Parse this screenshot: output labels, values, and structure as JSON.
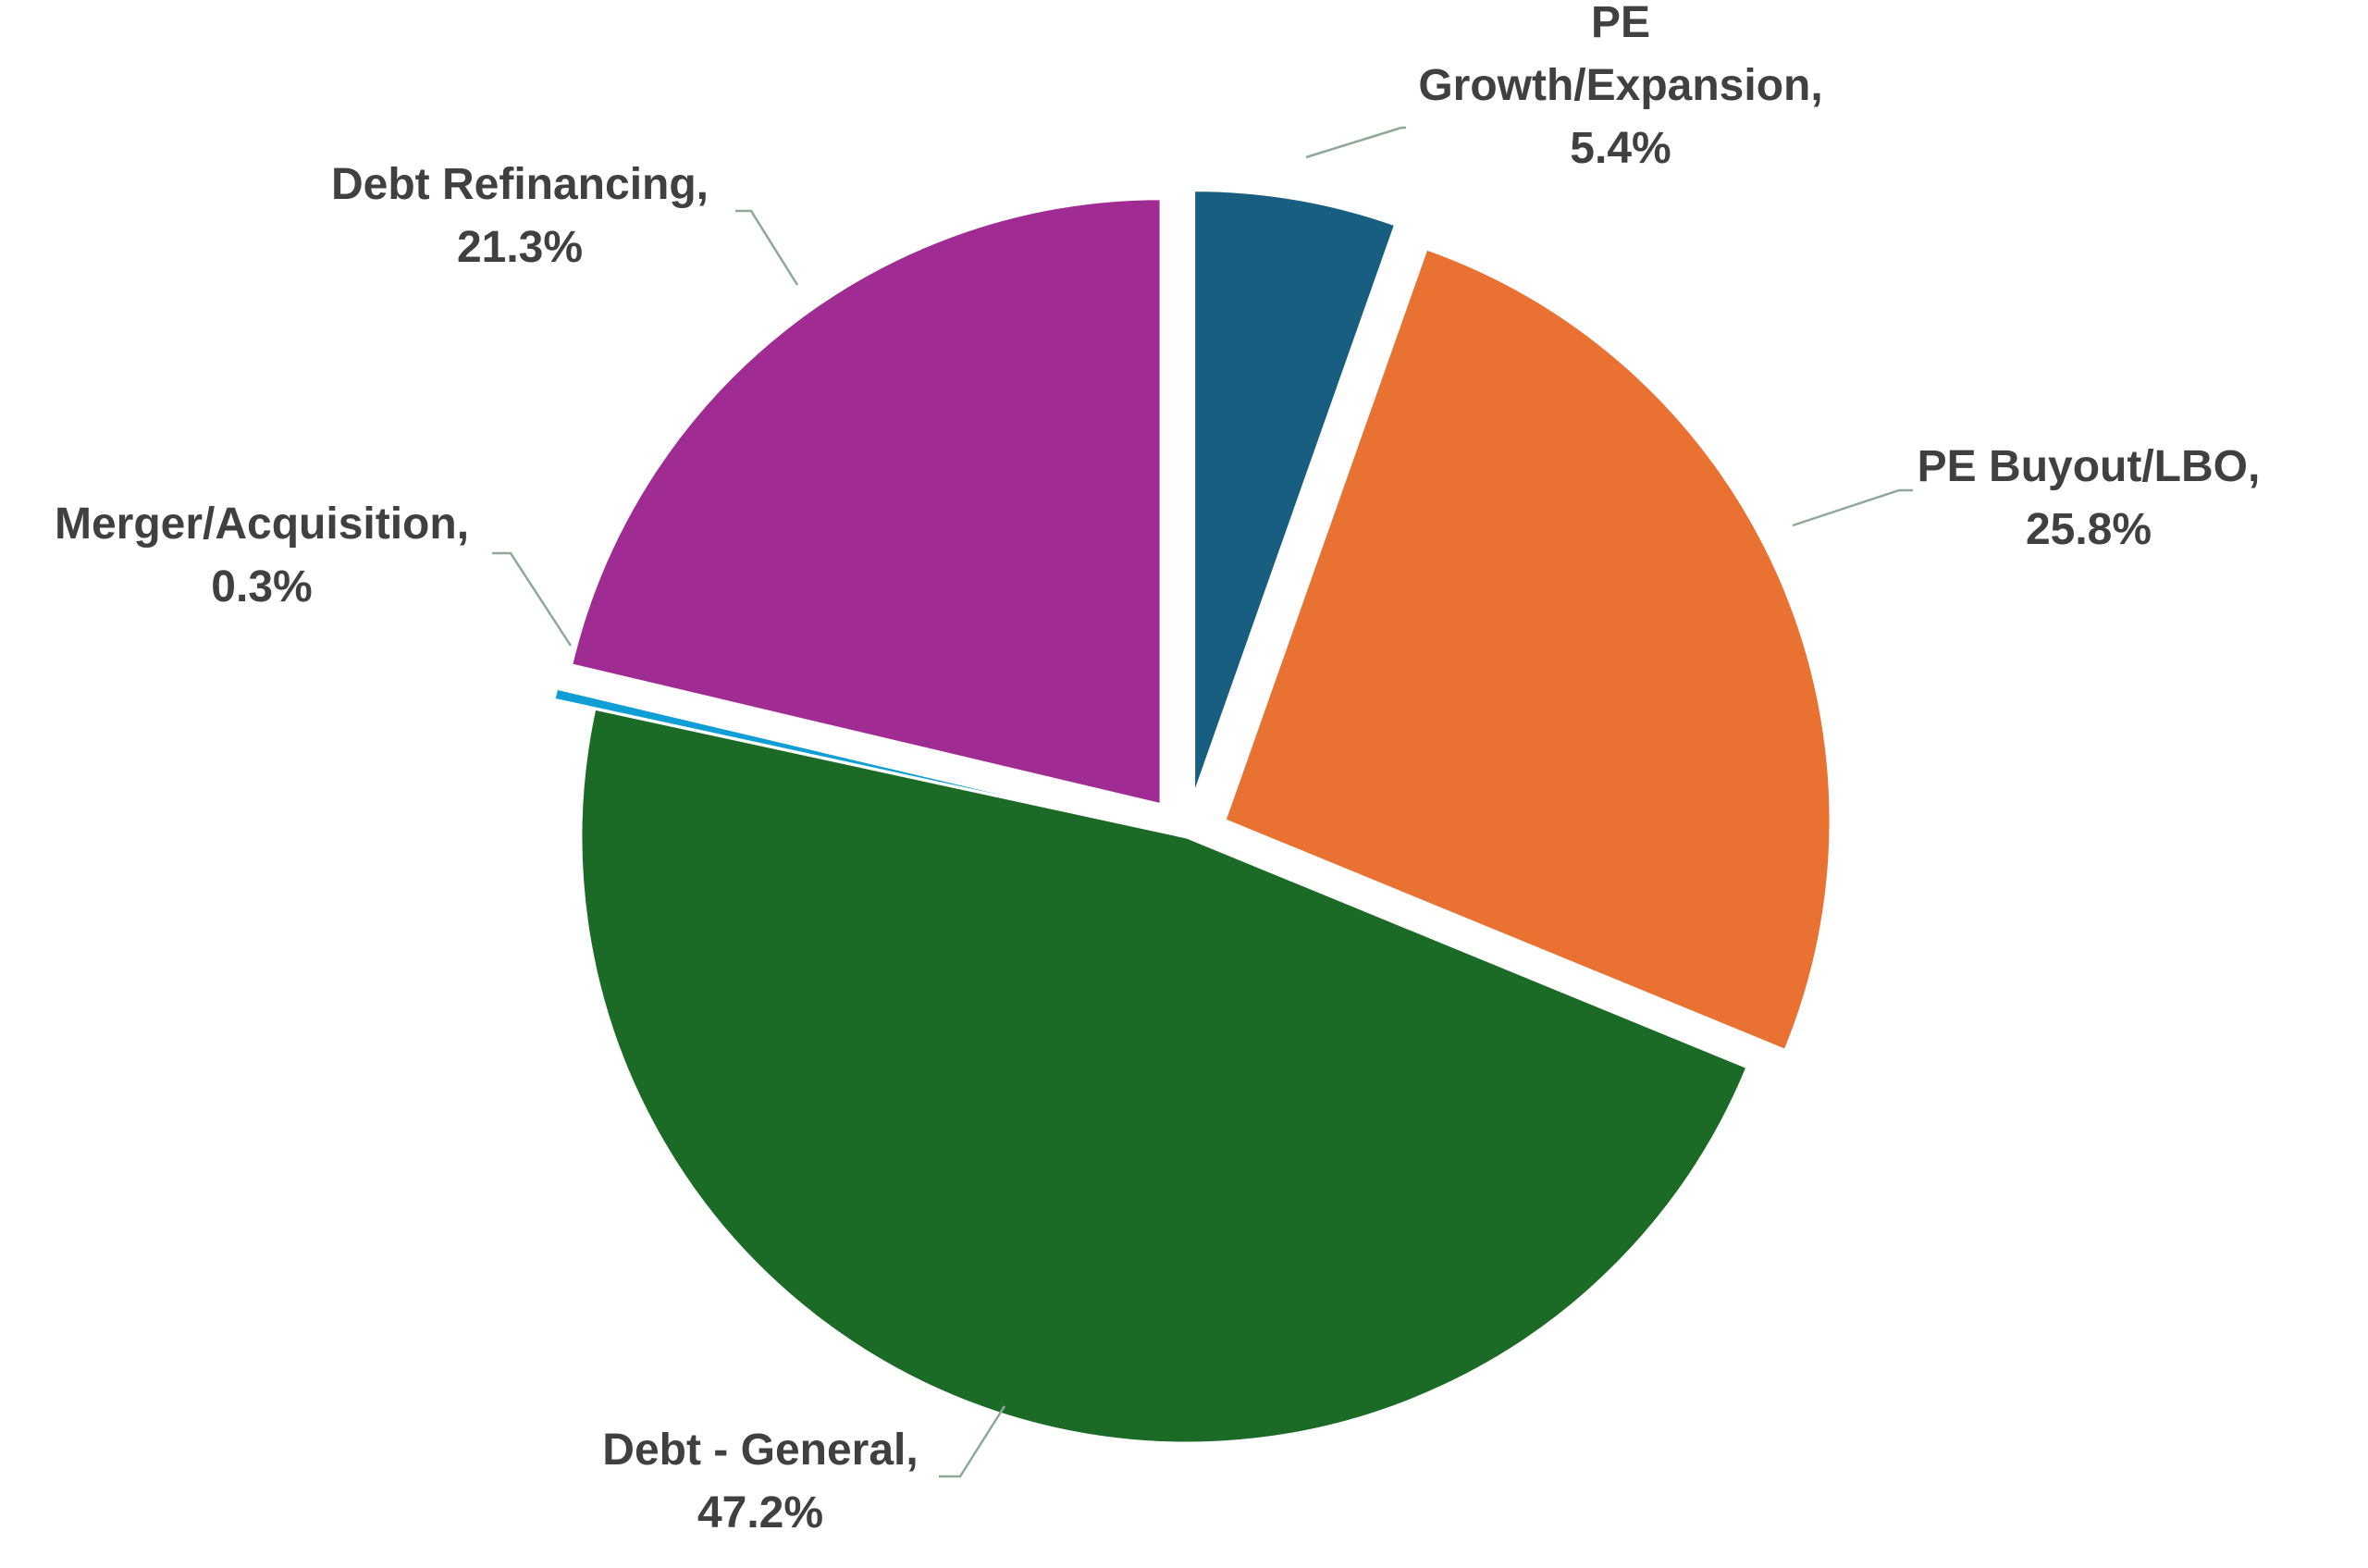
{
  "chart_data": {
    "type": "pie",
    "title": "",
    "slices": [
      {
        "label": "PE Growth/Expansion",
        "value": 5.4,
        "display": "5.4%",
        "color": "#175E81",
        "exploded": true
      },
      {
        "label": "PE Buyout/LBO",
        "value": 25.8,
        "display": "25.8%",
        "color": "#E97132",
        "exploded": true
      },
      {
        "label": "Debt - General",
        "value": 47.2,
        "display": "47.2%",
        "color": "#1B6A25",
        "exploded": false
      },
      {
        "label": "Merger/Acquisition",
        "value": 0.3,
        "display": "0.3%",
        "color": "#0F9ED5",
        "exploded": true
      },
      {
        "label": "Debt Refinancing",
        "value": 21.3,
        "display": "21.3%",
        "color": "#A02B93",
        "exploded": true
      }
    ],
    "data_labels": [
      {
        "lines": [
          "PE",
          "Growth/Expansion,",
          "5.4%"
        ]
      },
      {
        "lines": [
          "PE Buyout/LBO,",
          "25.8%"
        ]
      },
      {
        "lines": [
          "Debt - General,",
          "47.2%"
        ]
      },
      {
        "lines": [
          "Merger/Acquisition,",
          "0.3%"
        ]
      },
      {
        "lines": [
          "Debt Refinancing,",
          "21.3%"
        ]
      }
    ],
    "legend": "none",
    "start_angle_deg": 0,
    "direction": "clockwise"
  },
  "colors": {
    "label_text": "#404040",
    "leader_line": "#8FA898",
    "background": "#FFFFFF"
  }
}
